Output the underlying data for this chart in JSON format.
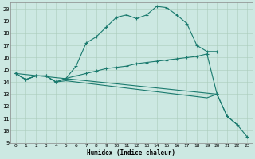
{
  "xlabel": "Humidex (Indice chaleur)",
  "xlim": [
    -0.5,
    23.5
  ],
  "ylim": [
    9,
    20.5
  ],
  "yticks": [
    9,
    10,
    11,
    12,
    13,
    14,
    15,
    16,
    17,
    18,
    19,
    20
  ],
  "xticks": [
    0,
    1,
    2,
    3,
    4,
    5,
    6,
    7,
    8,
    9,
    10,
    11,
    12,
    13,
    14,
    15,
    16,
    17,
    18,
    19,
    20,
    21,
    22,
    23
  ],
  "bg_color": "#cce8e2",
  "grid_color": "#aaccbb",
  "line_color": "#1a7a6e",
  "curve1_x": [
    0,
    1,
    2,
    3,
    4,
    5,
    6,
    7,
    8,
    9,
    10,
    11,
    12,
    13,
    14,
    15,
    16,
    17,
    18,
    19,
    20
  ],
  "curve1_y": [
    14.7,
    14.2,
    14.5,
    14.5,
    14.0,
    14.3,
    15.3,
    17.2,
    17.7,
    18.5,
    19.3,
    19.5,
    19.2,
    19.5,
    20.2,
    20.1,
    19.5,
    18.8,
    17.0,
    16.5,
    16.5
  ],
  "curve2_x": [
    0,
    1,
    2,
    3,
    4,
    5,
    6,
    7,
    8,
    9,
    10,
    11,
    12,
    13,
    14,
    15,
    16,
    17,
    18,
    19,
    20
  ],
  "curve2_y": [
    14.7,
    14.2,
    14.5,
    14.5,
    14.0,
    14.3,
    14.5,
    14.7,
    14.9,
    15.1,
    15.2,
    15.3,
    15.5,
    15.6,
    15.7,
    15.8,
    15.9,
    16.0,
    16.1,
    16.3,
    13.0
  ],
  "curve3_x": [
    0,
    1,
    2,
    3,
    4,
    5,
    6,
    7,
    8,
    9,
    10,
    11,
    12,
    13,
    14,
    15,
    16,
    17,
    18,
    19,
    20,
    21,
    22
  ],
  "curve3_y": [
    14.7,
    14.2,
    14.5,
    14.5,
    14.0,
    14.1,
    14.0,
    13.9,
    13.8,
    13.7,
    13.6,
    13.5,
    13.4,
    13.3,
    13.2,
    13.1,
    13.0,
    12.9,
    12.8,
    12.7,
    13.0,
    11.2,
    10.5
  ],
  "curve4_x": [
    0,
    20,
    21,
    22,
    23
  ],
  "curve4_y": [
    14.7,
    13.0,
    11.2,
    10.5,
    9.5
  ]
}
